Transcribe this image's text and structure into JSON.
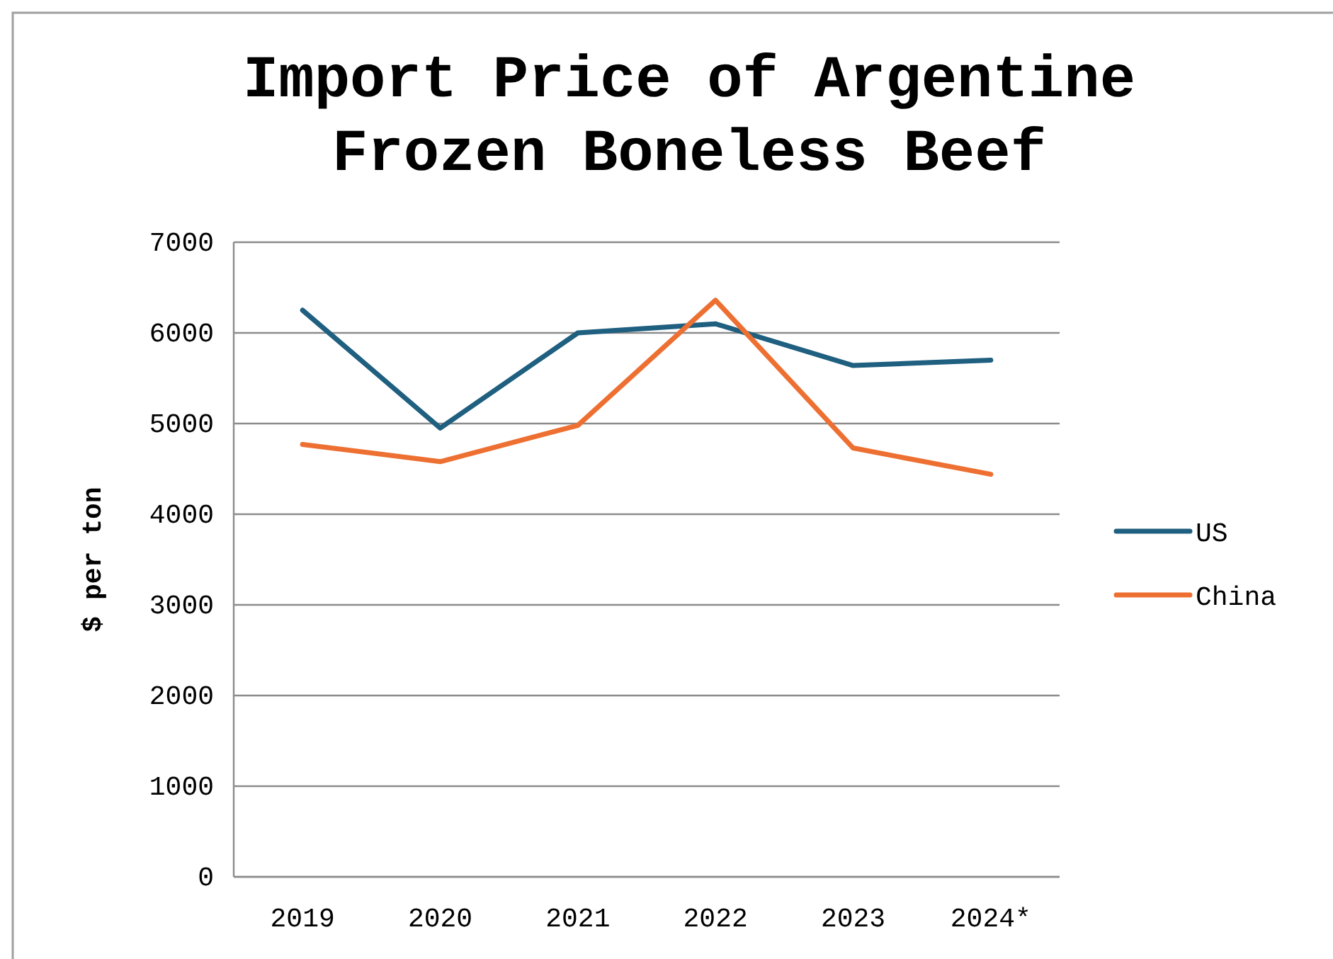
{
  "chart_data": {
    "type": "line",
    "title": "Import Price of Argentine Frozen Boneless Beef",
    "ylabel": "$ per ton",
    "categories": [
      "2019",
      "2020",
      "2021",
      "2022",
      "2023",
      "2024*"
    ],
    "series": [
      {
        "name": "US",
        "color": "#1f5f7f",
        "values": [
          6250,
          4950,
          6000,
          6100,
          5640,
          5700
        ]
      },
      {
        "name": "China",
        "color": "#ed7032",
        "values": [
          4770,
          4580,
          4980,
          6360,
          4730,
          4440
        ]
      }
    ],
    "ylim": [
      0,
      7000
    ],
    "yticks": [
      0,
      1000,
      2000,
      3000,
      4000,
      5000,
      6000,
      7000
    ],
    "grid": "y",
    "legend": "right",
    "marker": "none",
    "line_style": "solid"
  }
}
